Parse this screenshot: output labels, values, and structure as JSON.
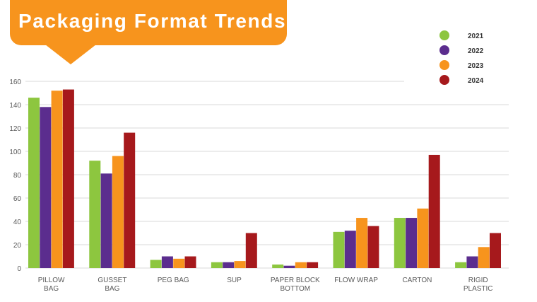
{
  "title": "Packaging Format Trends",
  "colors": {
    "banner": "#f7941d",
    "banner_text": "#ffffff",
    "grid": "#d9d9d9",
    "axis_text": "#595959"
  },
  "chart_data": {
    "type": "bar",
    "title": "Packaging Format Trends",
    "categories": [
      [
        "PILLOW",
        "BAG"
      ],
      [
        "GUSSET",
        "BAG"
      ],
      [
        "PEG BAG"
      ],
      [
        "SUP"
      ],
      [
        "PAPER BLOCK",
        "BOTTOM"
      ],
      [
        "FLOW WRAP"
      ],
      [
        "CARTON"
      ],
      [
        "RIGID",
        "PLASTIC"
      ]
    ],
    "series": [
      {
        "name": "2021",
        "color": "#8dc63f",
        "values": [
          146,
          92,
          7,
          5,
          3,
          31,
          43,
          5
        ]
      },
      {
        "name": "2022",
        "color": "#5b2d8e",
        "values": [
          138,
          81,
          10,
          5,
          2,
          32,
          43,
          10
        ]
      },
      {
        "name": "2023",
        "color": "#f7941d",
        "values": [
          152,
          96,
          8,
          6,
          5,
          43,
          51,
          18
        ]
      },
      {
        "name": "2024",
        "color": "#a6191c",
        "values": [
          153,
          116,
          10,
          30,
          5,
          36,
          97,
          30
        ]
      }
    ],
    "yticks": [
      0,
      20,
      40,
      60,
      80,
      100,
      120,
      140,
      160
    ],
    "ylim": [
      0,
      160
    ],
    "grid": true,
    "legend_position": "top-right"
  }
}
